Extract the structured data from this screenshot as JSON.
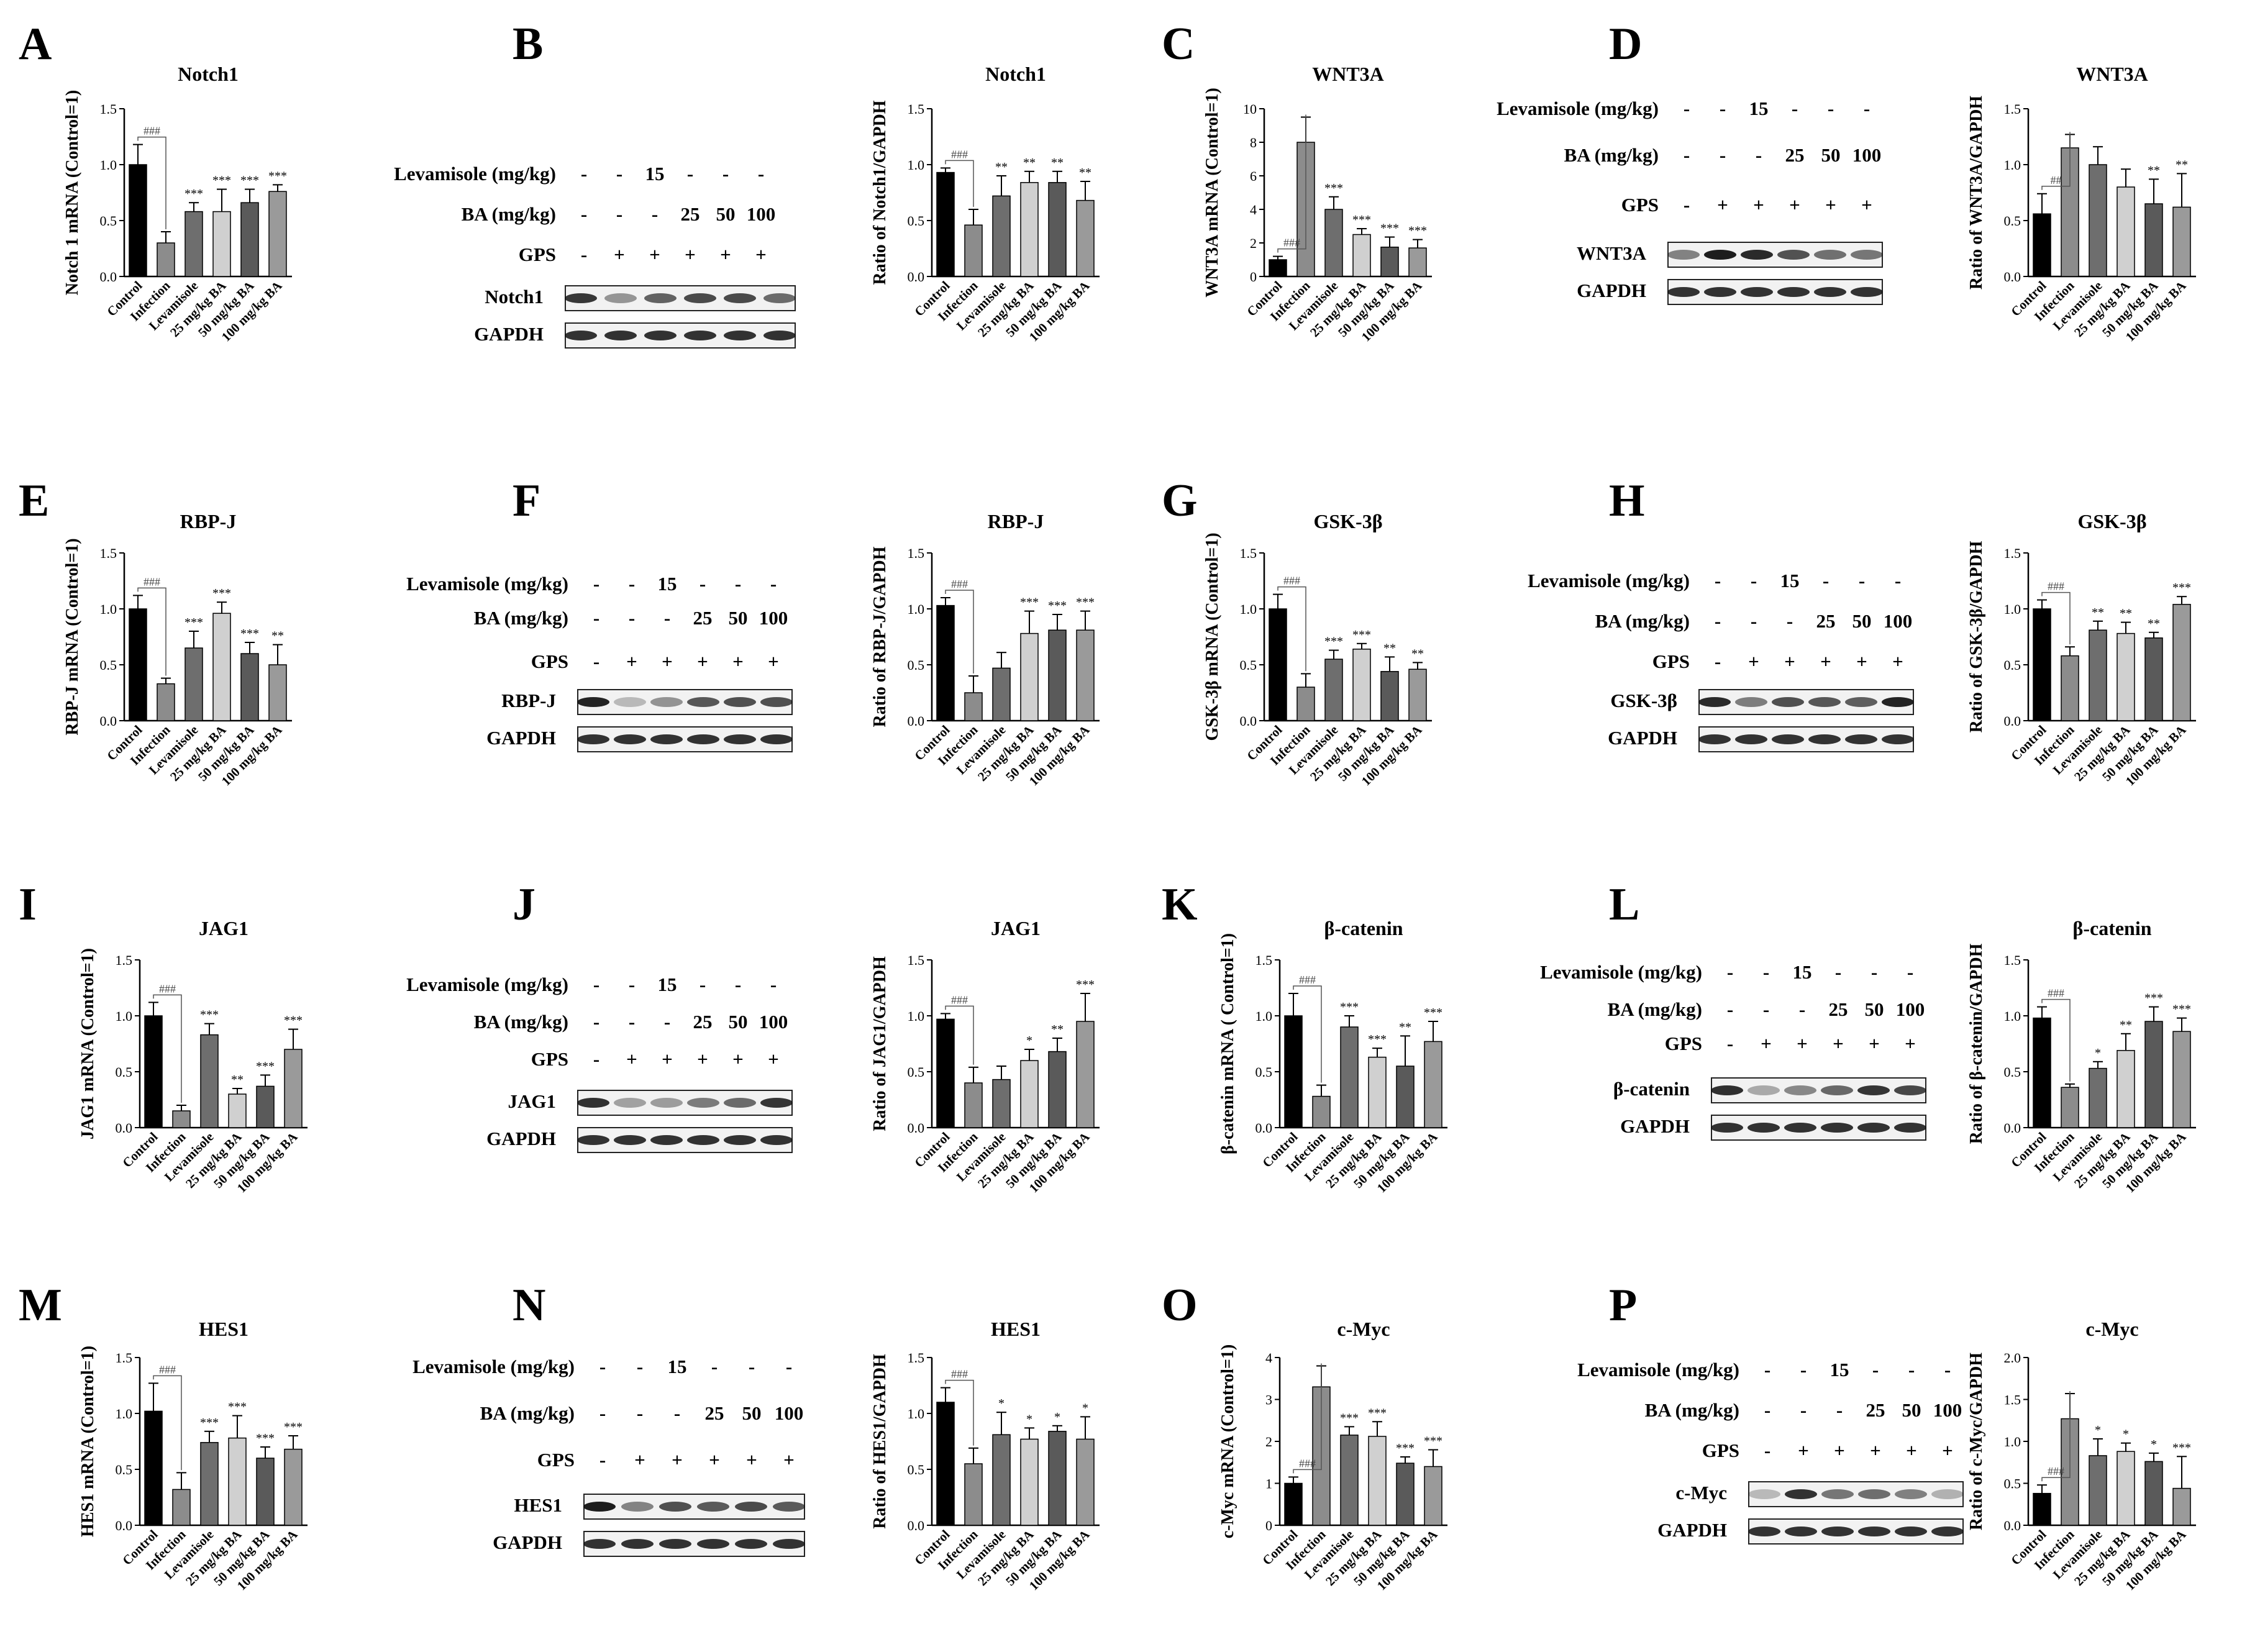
{
  "figure": {
    "categories": [
      "Control",
      "Infection",
      "Levamisole",
      "25 mg/kg BA",
      "50 mg/kg BA",
      "100 mg/kg BA"
    ],
    "bar_colors": [
      "#000000",
      "#8c8c8c",
      "#6e6e6e",
      "#d0d0d0",
      "#5a5a5a",
      "#9a9a9a"
    ],
    "conditions": [
      {
        "label": "Levamisole (mg/kg)",
        "values": [
          "-",
          "-",
          "15",
          "-",
          "-",
          "-"
        ]
      },
      {
        "label": "BA (mg/kg)",
        "values": [
          "-",
          "-",
          "-",
          "25",
          "50",
          "100"
        ]
      },
      {
        "label": "GPS",
        "values": [
          "-",
          "+",
          "+",
          "+",
          "+",
          "+"
        ]
      }
    ]
  },
  "panels": [
    {
      "id": "A",
      "label": "A"
    },
    {
      "id": "B",
      "label": "B",
      "target": "Notch1",
      "loading": "GAPDH"
    },
    {
      "id": "C",
      "label": "C"
    },
    {
      "id": "D",
      "label": "D",
      "target": "WNT3A",
      "loading": "GAPDH"
    },
    {
      "id": "E",
      "label": "E"
    },
    {
      "id": "F",
      "label": "F",
      "target": "RBP-J",
      "loading": "GAPDH"
    },
    {
      "id": "G",
      "label": "G"
    },
    {
      "id": "H",
      "label": "H",
      "target": "GSK-3β",
      "loading": "GAPDH"
    },
    {
      "id": "I",
      "label": "I"
    },
    {
      "id": "J",
      "label": "J",
      "target": "JAG1",
      "loading": "GAPDH"
    },
    {
      "id": "K",
      "label": "K"
    },
    {
      "id": "L",
      "label": "L",
      "target": "β-catenin",
      "loading": "GAPDH"
    },
    {
      "id": "M",
      "label": "M"
    },
    {
      "id": "N",
      "label": "N",
      "target": "HES1",
      "loading": "GAPDH"
    },
    {
      "id": "O",
      "label": "O"
    },
    {
      "id": "P",
      "label": "P",
      "target": "c-Myc",
      "loading": "GAPDH"
    }
  ],
  "chart_data": [
    {
      "panel": "A",
      "type": "bar",
      "title": "Notch1",
      "ylabel": "Notch 1 mRNA (Control=1)",
      "ylim": [
        0,
        1.5
      ],
      "yticks": [
        "0.0",
        "0.5",
        "1.0",
        "1.5"
      ],
      "values": [
        1.0,
        0.3,
        0.58,
        0.58,
        0.66,
        0.76
      ],
      "errors": [
        0.18,
        0.1,
        0.08,
        0.2,
        0.12,
        0.06
      ],
      "significance": [
        "",
        "###",
        "***",
        "***",
        "***",
        "***"
      ]
    },
    {
      "panel": "B",
      "type": "bar",
      "title": "Notch1",
      "ylabel": "Ratio of Notch1/GAPDH",
      "ylim": [
        0,
        1.5
      ],
      "yticks": [
        "0.0",
        "0.5",
        "1.0",
        "1.5"
      ],
      "values": [
        0.93,
        0.46,
        0.72,
        0.84,
        0.84,
        0.68
      ],
      "errors": [
        0.04,
        0.14,
        0.18,
        0.1,
        0.1,
        0.17
      ],
      "significance": [
        "",
        "###",
        "**",
        "**",
        "**",
        "**"
      ]
    },
    {
      "panel": "C",
      "type": "bar",
      "title": "WNT3A",
      "ylabel": "WNT3A mRNA (Control=1)",
      "ylim": [
        0,
        10
      ],
      "yticks": [
        "0",
        "2",
        "4",
        "6",
        "8",
        "10"
      ],
      "values": [
        1.0,
        8.0,
        4.0,
        2.5,
        1.75,
        1.7
      ],
      "errors": [
        0.2,
        1.5,
        0.75,
        0.35,
        0.6,
        0.5
      ],
      "significance": [
        "",
        "###",
        "***",
        "***",
        "***",
        "***"
      ]
    },
    {
      "panel": "D",
      "type": "bar",
      "title": "WNT3A",
      "ylabel": "Ratio of WNT3A/GAPDH",
      "ylim": [
        0,
        1.5
      ],
      "yticks": [
        "0.0",
        "0.5",
        "1.0",
        "1.5"
      ],
      "values": [
        0.56,
        1.15,
        1.0,
        0.8,
        0.65,
        0.62
      ],
      "errors": [
        0.18,
        0.12,
        0.16,
        0.16,
        0.22,
        0.3
      ],
      "significance": [
        "",
        "##",
        "",
        "",
        "**",
        "**"
      ]
    },
    {
      "panel": "E",
      "type": "bar",
      "title": "RBP-J",
      "ylabel": "RBP-J mRNA (Control=1)",
      "ylim": [
        0,
        1.5
      ],
      "yticks": [
        "0.0",
        "0.5",
        "1.0",
        "1.5"
      ],
      "values": [
        1.0,
        0.33,
        0.65,
        0.96,
        0.6,
        0.5
      ],
      "errors": [
        0.12,
        0.05,
        0.15,
        0.1,
        0.1,
        0.18
      ],
      "significance": [
        "",
        "###",
        "***",
        "***",
        "***",
        "**"
      ]
    },
    {
      "panel": "F",
      "type": "bar",
      "title": "RBP-J",
      "ylabel": "Ratio of RBP-J/GAPDH",
      "ylim": [
        0,
        1.5
      ],
      "yticks": [
        "0.0",
        "0.5",
        "1.0",
        "1.5"
      ],
      "values": [
        1.03,
        0.25,
        0.47,
        0.78,
        0.81,
        0.81
      ],
      "errors": [
        0.07,
        0.15,
        0.14,
        0.2,
        0.14,
        0.17
      ],
      "significance": [
        "",
        "###",
        "",
        "***",
        "***",
        "***"
      ]
    },
    {
      "panel": "G",
      "type": "bar",
      "title": "GSK-3β",
      "ylabel": "GSK-3β mRNA (Control=1)",
      "ylim": [
        0,
        1.5
      ],
      "yticks": [
        "0.0",
        "0.5",
        "1.0",
        "1.5"
      ],
      "values": [
        1.0,
        0.3,
        0.55,
        0.64,
        0.44,
        0.46
      ],
      "errors": [
        0.13,
        0.12,
        0.08,
        0.05,
        0.13,
        0.06
      ],
      "significance": [
        "",
        "###",
        "***",
        "***",
        "**",
        "**"
      ]
    },
    {
      "panel": "H",
      "type": "bar",
      "title": "GSK-3β",
      "ylabel": "Ratio of GSK-3β/GAPDH",
      "ylim": [
        0,
        1.5
      ],
      "yticks": [
        "0.0",
        "0.5",
        "1.0",
        "1.5"
      ],
      "values": [
        1.0,
        0.58,
        0.81,
        0.78,
        0.74,
        1.04
      ],
      "errors": [
        0.08,
        0.08,
        0.08,
        0.1,
        0.05,
        0.07
      ],
      "significance": [
        "",
        "###",
        "**",
        "**",
        "**",
        "***"
      ]
    },
    {
      "panel": "I",
      "type": "bar",
      "title": "JAG1",
      "ylabel": "JAG1 mRNA (Control=1)",
      "ylim": [
        0,
        1.5
      ],
      "yticks": [
        "0.0",
        "0.5",
        "1.0",
        "1.5"
      ],
      "values": [
        1.0,
        0.15,
        0.83,
        0.3,
        0.37,
        0.7
      ],
      "errors": [
        0.12,
        0.05,
        0.1,
        0.05,
        0.1,
        0.18
      ],
      "significance": [
        "",
        "###",
        "***",
        "**",
        "***",
        "***"
      ]
    },
    {
      "panel": "J",
      "type": "bar",
      "title": "JAG1",
      "ylabel": "Ratio of JAG1/GAPDH",
      "ylim": [
        0,
        1.5
      ],
      "yticks": [
        "0.0",
        "0.5",
        "1.0",
        "1.5"
      ],
      "values": [
        0.97,
        0.4,
        0.43,
        0.6,
        0.68,
        0.95
      ],
      "errors": [
        0.05,
        0.14,
        0.12,
        0.1,
        0.12,
        0.25
      ],
      "significance": [
        "",
        "###",
        "",
        "*",
        "**",
        "***"
      ]
    },
    {
      "panel": "K",
      "type": "bar",
      "title": "β-catenin",
      "ylabel": "β-catenin mRNA ( Control=1)",
      "ylim": [
        0,
        1.5
      ],
      "yticks": [
        "0.0",
        "0.5",
        "1.0",
        "1.5"
      ],
      "values": [
        1.0,
        0.28,
        0.9,
        0.63,
        0.55,
        0.77
      ],
      "errors": [
        0.2,
        0.1,
        0.1,
        0.08,
        0.27,
        0.18
      ],
      "significance": [
        "",
        "###",
        "***",
        "***",
        "**",
        "***"
      ]
    },
    {
      "panel": "L",
      "type": "bar",
      "title": "β-catenin",
      "ylabel": "Ratio of β-catenin/GAPDH",
      "ylim": [
        0,
        1.5
      ],
      "yticks": [
        "0.0",
        "0.5",
        "1.0",
        "1.5"
      ],
      "values": [
        0.98,
        0.36,
        0.53,
        0.69,
        0.95,
        0.86
      ],
      "errors": [
        0.1,
        0.03,
        0.06,
        0.15,
        0.13,
        0.12
      ],
      "significance": [
        "",
        "###",
        "*",
        "**",
        "***",
        "***"
      ]
    },
    {
      "panel": "M",
      "type": "bar",
      "title": "HES1",
      "ylabel": "HES1 mRNA (Control=1)",
      "ylim": [
        0,
        1.5
      ],
      "yticks": [
        "0.0",
        "0.5",
        "1.0",
        "1.5"
      ],
      "values": [
        1.02,
        0.32,
        0.74,
        0.78,
        0.6,
        0.68
      ],
      "errors": [
        0.25,
        0.15,
        0.1,
        0.2,
        0.1,
        0.12
      ],
      "significance": [
        "",
        "###",
        "***",
        "***",
        "***",
        "***"
      ]
    },
    {
      "panel": "N",
      "type": "bar",
      "title": "HES1",
      "ylabel": "Ratio of HES1/GAPDH",
      "ylim": [
        0,
        1.5
      ],
      "yticks": [
        "0.0",
        "0.5",
        "1.0",
        "1.5"
      ],
      "values": [
        1.1,
        0.55,
        0.81,
        0.77,
        0.84,
        0.77
      ],
      "errors": [
        0.13,
        0.14,
        0.2,
        0.1,
        0.05,
        0.2
      ],
      "significance": [
        "",
        "###",
        "*",
        "*",
        "*",
        "*"
      ]
    },
    {
      "panel": "O",
      "type": "bar",
      "title": "c-Myc",
      "ylabel": "c-Myc mRNA (Control=1)",
      "ylim": [
        0,
        4
      ],
      "yticks": [
        "0",
        "1",
        "2",
        "3",
        "4"
      ],
      "values": [
        1.0,
        3.3,
        2.15,
        2.12,
        1.48,
        1.4
      ],
      "errors": [
        0.15,
        0.5,
        0.2,
        0.35,
        0.15,
        0.4
      ],
      "significance": [
        "",
        "###",
        "***",
        "***",
        "***",
        "***"
      ]
    },
    {
      "panel": "P",
      "type": "bar",
      "title": "c-Myc",
      "ylabel": "Ratio of c-Myc/GAPDH",
      "ylim": [
        0,
        2.0
      ],
      "yticks": [
        "0.0",
        "0.5",
        "1.0",
        "1.5",
        "2.0"
      ],
      "values": [
        0.38,
        1.27,
        0.83,
        0.88,
        0.76,
        0.44
      ],
      "errors": [
        0.1,
        0.3,
        0.2,
        0.1,
        0.1,
        0.38
      ],
      "significance": [
        "",
        "###",
        "*",
        "*",
        "*",
        "***"
      ]
    }
  ]
}
